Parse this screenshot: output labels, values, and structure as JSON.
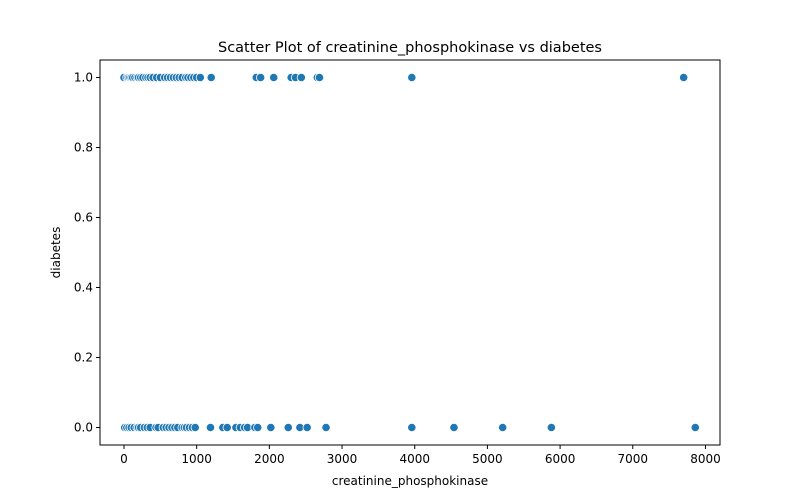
{
  "chart_data": {
    "type": "scatter",
    "title": "Scatter Plot of creatinine_phosphokinase vs diabetes",
    "xlabel": "creatinine_phosphokinase",
    "ylabel": "diabetes",
    "xlim": [
      -330,
      8200
    ],
    "ylim": [
      -0.05,
      1.05
    ],
    "xticks": [
      0,
      1000,
      2000,
      3000,
      4000,
      5000,
      6000,
      7000,
      8000
    ],
    "yticks": [
      0.0,
      0.2,
      0.4,
      0.6,
      0.8,
      1.0
    ],
    "xtick_labels": [
      "0",
      "1000",
      "2000",
      "3000",
      "4000",
      "5000",
      "6000",
      "7000",
      "8000"
    ],
    "ytick_labels": [
      "0.0",
      "0.2",
      "0.4",
      "0.6",
      "0.8",
      "1.0"
    ],
    "grid": false,
    "point_color": "#1f77b4",
    "point_edge_color": "#ffffff",
    "series": [
      {
        "x": [
          0,
          40,
          60,
          80,
          100,
          120,
          150,
          180,
          200,
          230,
          260,
          300,
          330,
          360,
          400,
          450,
          500,
          560,
          600,
          640,
          680,
          720,
          760,
          800,
          850,
          880,
          920,
          960,
          1000,
          1050,
          1200,
          1820,
          1880,
          2060,
          2300,
          2360,
          2440,
          2660,
          2690,
          3960,
          7700
        ],
        "y": [
          1,
          1,
          1,
          1,
          1,
          1,
          1,
          1,
          1,
          1,
          1,
          1,
          1,
          1,
          1,
          1,
          1,
          1,
          1,
          1,
          1,
          1,
          1,
          1,
          1,
          1,
          1,
          1,
          1,
          1,
          1,
          1,
          1,
          1,
          1,
          1,
          1,
          1,
          1,
          1,
          1
        ]
      },
      {
        "x": [
          10,
          40,
          70,
          100,
          140,
          180,
          200,
          230,
          280,
          320,
          360,
          440,
          470,
          540,
          580,
          620,
          660,
          700,
          740,
          800,
          830,
          860,
          900,
          940,
          980,
          1190,
          1360,
          1420,
          1540,
          1600,
          1660,
          1700,
          1800,
          1840,
          2020,
          2260,
          2420,
          2520,
          2780,
          3960,
          4540,
          5210,
          5880,
          7860
        ],
        "y": [
          0,
          0,
          0,
          0,
          0,
          0,
          0,
          0,
          0,
          0,
          0,
          0,
          0,
          0,
          0,
          0,
          0,
          0,
          0,
          0,
          0,
          0,
          0,
          0,
          0,
          0,
          0,
          0,
          0,
          0,
          0,
          0,
          0,
          0,
          0,
          0,
          0,
          0,
          0,
          0,
          0,
          0,
          0,
          0
        ]
      }
    ]
  }
}
